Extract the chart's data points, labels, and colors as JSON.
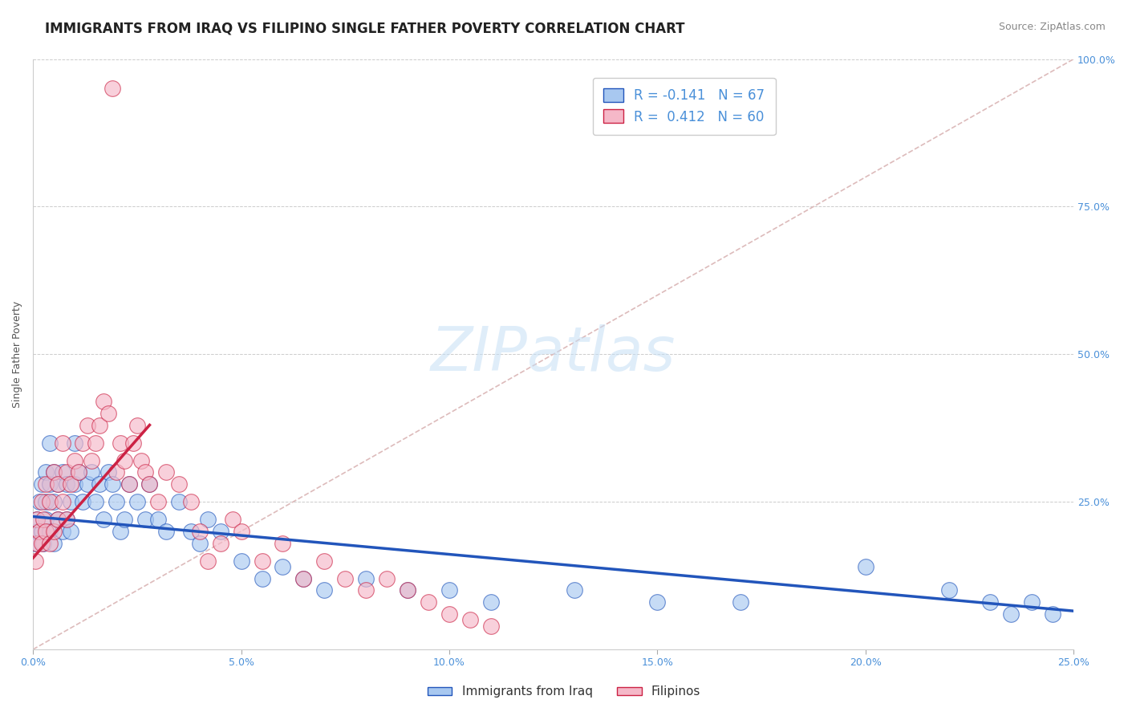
{
  "title": "IMMIGRANTS FROM IRAQ VS FILIPINO SINGLE FATHER POVERTY CORRELATION CHART",
  "source_text": "Source: ZipAtlas.com",
  "ylabel": "Single Father Poverty",
  "watermark": "ZIPatlas",
  "xlim": [
    0.0,
    0.25
  ],
  "ylim": [
    0.0,
    1.0
  ],
  "blue_color": "#a8c8f0",
  "pink_color": "#f5b8c8",
  "blue_line_color": "#2255bb",
  "pink_line_color": "#cc2244",
  "diagonal_color": "#ddbbbb",
  "title_color": "#222222",
  "axis_color": "#4a90d9",
  "R_blue": -0.141,
  "N_blue": 67,
  "R_pink": 0.412,
  "N_pink": 60,
  "blue_x": [
    0.0005,
    0.001,
    0.001,
    0.0015,
    0.002,
    0.002,
    0.0025,
    0.003,
    0.003,
    0.003,
    0.004,
    0.004,
    0.004,
    0.005,
    0.005,
    0.005,
    0.006,
    0.006,
    0.007,
    0.007,
    0.008,
    0.008,
    0.009,
    0.009,
    0.01,
    0.01,
    0.011,
    0.012,
    0.013,
    0.014,
    0.015,
    0.016,
    0.017,
    0.018,
    0.019,
    0.02,
    0.021,
    0.022,
    0.023,
    0.025,
    0.027,
    0.028,
    0.03,
    0.032,
    0.035,
    0.038,
    0.04,
    0.042,
    0.045,
    0.05,
    0.055,
    0.06,
    0.065,
    0.07,
    0.08,
    0.09,
    0.1,
    0.11,
    0.13,
    0.15,
    0.17,
    0.2,
    0.22,
    0.23,
    0.235,
    0.24,
    0.245
  ],
  "blue_y": [
    0.18,
    0.2,
    0.22,
    0.25,
    0.2,
    0.28,
    0.18,
    0.22,
    0.25,
    0.3,
    0.2,
    0.28,
    0.35,
    0.18,
    0.25,
    0.3,
    0.22,
    0.28,
    0.2,
    0.3,
    0.22,
    0.28,
    0.2,
    0.25,
    0.28,
    0.35,
    0.3,
    0.25,
    0.28,
    0.3,
    0.25,
    0.28,
    0.22,
    0.3,
    0.28,
    0.25,
    0.2,
    0.22,
    0.28,
    0.25,
    0.22,
    0.28,
    0.22,
    0.2,
    0.25,
    0.2,
    0.18,
    0.22,
    0.2,
    0.15,
    0.12,
    0.14,
    0.12,
    0.1,
    0.12,
    0.1,
    0.1,
    0.08,
    0.1,
    0.08,
    0.08,
    0.14,
    0.1,
    0.08,
    0.06,
    0.08,
    0.06
  ],
  "pink_x": [
    0.0005,
    0.001,
    0.001,
    0.0015,
    0.002,
    0.002,
    0.0025,
    0.003,
    0.003,
    0.004,
    0.004,
    0.005,
    0.005,
    0.006,
    0.006,
    0.007,
    0.007,
    0.008,
    0.008,
    0.009,
    0.01,
    0.011,
    0.012,
    0.013,
    0.014,
    0.015,
    0.016,
    0.017,
    0.018,
    0.019,
    0.02,
    0.021,
    0.022,
    0.023,
    0.024,
    0.025,
    0.026,
    0.027,
    0.028,
    0.03,
    0.032,
    0.035,
    0.038,
    0.04,
    0.042,
    0.045,
    0.048,
    0.05,
    0.055,
    0.06,
    0.065,
    0.07,
    0.075,
    0.08,
    0.085,
    0.09,
    0.095,
    0.1,
    0.105,
    0.11
  ],
  "pink_y": [
    0.15,
    0.18,
    0.22,
    0.2,
    0.25,
    0.18,
    0.22,
    0.2,
    0.28,
    0.18,
    0.25,
    0.2,
    0.3,
    0.22,
    0.28,
    0.25,
    0.35,
    0.22,
    0.3,
    0.28,
    0.32,
    0.3,
    0.35,
    0.38,
    0.32,
    0.35,
    0.38,
    0.42,
    0.4,
    0.95,
    0.3,
    0.35,
    0.32,
    0.28,
    0.35,
    0.38,
    0.32,
    0.3,
    0.28,
    0.25,
    0.3,
    0.28,
    0.25,
    0.2,
    0.15,
    0.18,
    0.22,
    0.2,
    0.15,
    0.18,
    0.12,
    0.15,
    0.12,
    0.1,
    0.12,
    0.1,
    0.08,
    0.06,
    0.05,
    0.04
  ],
  "blue_trend_x0": 0.0,
  "blue_trend_x1": 0.25,
  "blue_trend_y0": 0.225,
  "blue_trend_y1": 0.065,
  "pink_trend_x0": 0.0,
  "pink_trend_x1": 0.028,
  "pink_trend_y0": 0.155,
  "pink_trend_y1": 0.38,
  "title_fontsize": 12,
  "axis_label_fontsize": 9,
  "tick_fontsize": 9,
  "legend_fontsize": 12,
  "watermark_fontsize": 55,
  "source_fontsize": 9
}
